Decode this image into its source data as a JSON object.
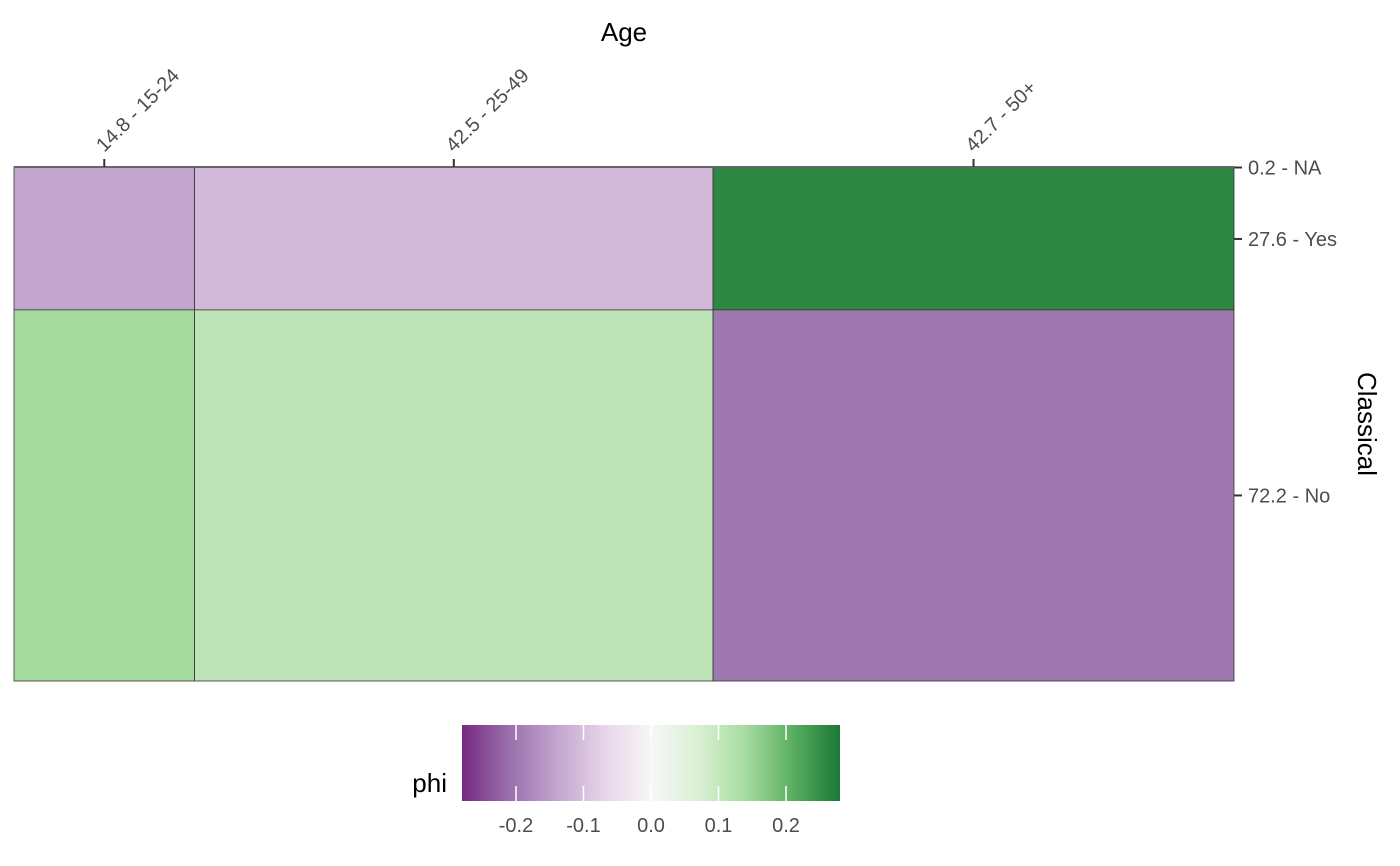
{
  "chart_data": {
    "type": "heatmap",
    "subtype": "mosaic",
    "xlabel": "Age",
    "ylabel": "Classical",
    "x_axis_position": "top",
    "y_axis_position": "right",
    "x_categories": [
      {
        "label": "14.8 - 15-24",
        "percent": 14.8
      },
      {
        "label": "42.5 - 25-49",
        "percent": 42.5
      },
      {
        "label": "42.7 - 50+",
        "percent": 42.7
      }
    ],
    "y_categories": [
      {
        "label": "0.2 - NA",
        "percent": 0.2
      },
      {
        "label": "27.6 - Yes",
        "percent": 27.6
      },
      {
        "label": "72.2 - No",
        "percent": 72.2
      }
    ],
    "cells": [
      {
        "x": "14.8 - 15-24",
        "y": "27.6 - Yes",
        "phi": -0.14
      },
      {
        "x": "25-49",
        "y": "27.6 - Yes",
        "phi": -0.11
      },
      {
        "x": "42.7 - 50+",
        "y": "27.6 - Yes",
        "phi": 0.26
      },
      {
        "x": "14.8 - 15-24",
        "y": "72.2 - No",
        "phi": 0.14
      },
      {
        "x": "42.5 - 25-49",
        "y": "72.2 - No",
        "phi": 0.11
      },
      {
        "x": "42.7 - 50+",
        "y": "72.2 - No",
        "phi": -0.2
      }
    ],
    "legend": {
      "title": "phi",
      "position": "bottom",
      "range": [
        -0.28,
        0.28
      ],
      "ticks": [
        "-0.2",
        "-0.1",
        "0.0",
        "0.1",
        "0.2"
      ],
      "tick_values": [
        -0.2,
        -0.1,
        0.0,
        0.1,
        0.2
      ],
      "palette": [
        "#762a83",
        "#9970ab",
        "#c2a5cf",
        "#e7d4e8",
        "#f7f7f7",
        "#d9f0d3",
        "#a6dba0",
        "#5aae61",
        "#1b7837"
      ]
    },
    "grid": false
  }
}
